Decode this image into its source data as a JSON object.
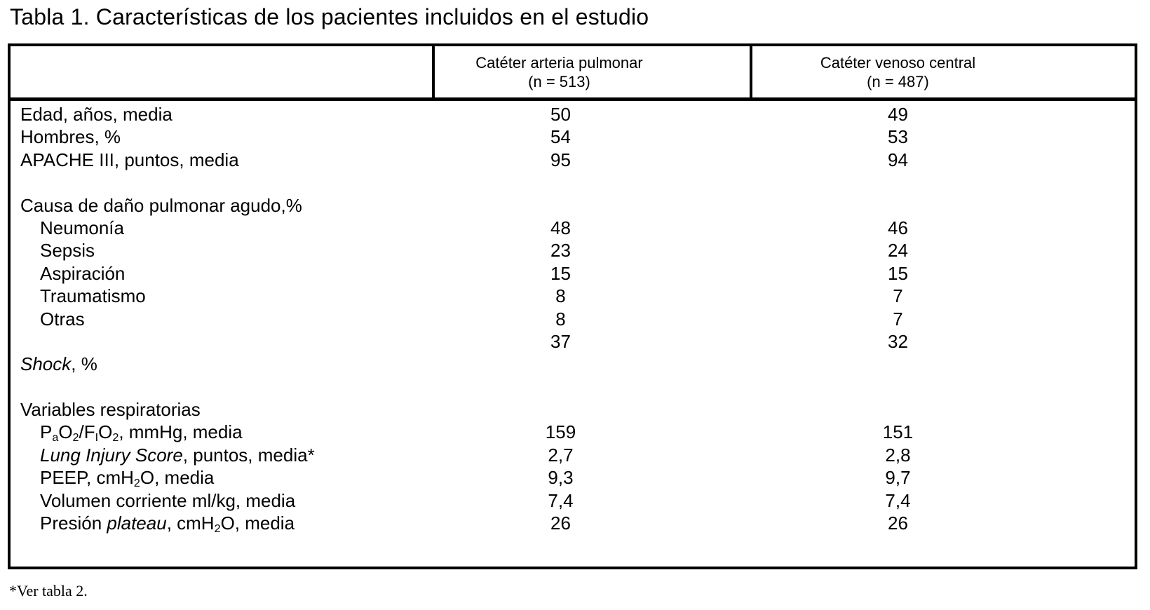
{
  "title": "Tabla 1. Características de los pacientes incluidos en el estudio",
  "footnote": "*Ver tabla 2.",
  "table": {
    "columns": [
      {
        "line1": "Catéter arteria pulmonar",
        "line2": "(n = 513)"
      },
      {
        "line1": "Catéter venoso central",
        "line2": "(n = 487)"
      }
    ],
    "rows": [
      {
        "label": [
          {
            "t": "Edad, años, media"
          }
        ],
        "v1": "50",
        "v2": "49"
      },
      {
        "label": [
          {
            "t": "Hombres, %"
          }
        ],
        "v1": "54",
        "v2": "53"
      },
      {
        "label": [
          {
            "t": "APACHE III, puntos, media"
          }
        ],
        "v1": "95",
        "v2": "94"
      },
      {
        "blank": true
      },
      {
        "label": [
          {
            "t": "Causa de daño pulmonar agudo,%"
          }
        ],
        "v1": "",
        "v2": ""
      },
      {
        "indent": true,
        "label": [
          {
            "t": "Neumonía"
          }
        ],
        "v1": "48",
        "v2": "46"
      },
      {
        "indent": true,
        "label": [
          {
            "t": "Sepsis"
          }
        ],
        "v1": "23",
        "v2": "24"
      },
      {
        "indent": true,
        "label": [
          {
            "t": "Aspiración"
          }
        ],
        "v1": "15",
        "v2": "15"
      },
      {
        "indent": true,
        "label": [
          {
            "t": "Traumatismo"
          }
        ],
        "v1": "8",
        "v2": "7"
      },
      {
        "indent": true,
        "label": [
          {
            "t": "Otras"
          }
        ],
        "v1": "8",
        "v2": "7"
      },
      {
        "label": [],
        "v1": "37",
        "v2": "32"
      },
      {
        "label": [
          {
            "t": "Shock",
            "s": "i"
          },
          {
            "t": ", %"
          }
        ],
        "v1": "",
        "v2": ""
      },
      {
        "blank": true
      },
      {
        "label": [
          {
            "t": "Variables respiratorias"
          }
        ],
        "v1": "",
        "v2": ""
      },
      {
        "indent": true,
        "label": [
          {
            "t": "P"
          },
          {
            "t": "a",
            "s": "sub"
          },
          {
            "t": "O"
          },
          {
            "t": "2",
            "s": "sub"
          },
          {
            "t": "/F"
          },
          {
            "t": "I",
            "s": "sub"
          },
          {
            "t": "O"
          },
          {
            "t": "2",
            "s": "sub"
          },
          {
            "t": ", mmHg, media"
          }
        ],
        "v1": "159",
        "v2": "151"
      },
      {
        "indent": true,
        "label": [
          {
            "t": "Lung Injury Score",
            "s": "i"
          },
          {
            "t": ", puntos, media*"
          }
        ],
        "v1": "2,7",
        "v2": "2,8"
      },
      {
        "indent": true,
        "label": [
          {
            "t": "PEEP, cmH"
          },
          {
            "t": "2",
            "s": "sub"
          },
          {
            "t": "O, media"
          }
        ],
        "v1": "9,3",
        "v2": "9,7"
      },
      {
        "indent": true,
        "label": [
          {
            "t": "Volumen corriente ml/kg, media"
          }
        ],
        "v1": "7,4",
        "v2": "7,4"
      },
      {
        "indent": true,
        "label": [
          {
            "t": "Presión "
          },
          {
            "t": "plateau",
            "s": "i"
          },
          {
            "t": ", cmH"
          },
          {
            "t": "2",
            "s": "sub"
          },
          {
            "t": "O, media"
          }
        ],
        "v1": "26",
        "v2": "26"
      }
    ]
  }
}
